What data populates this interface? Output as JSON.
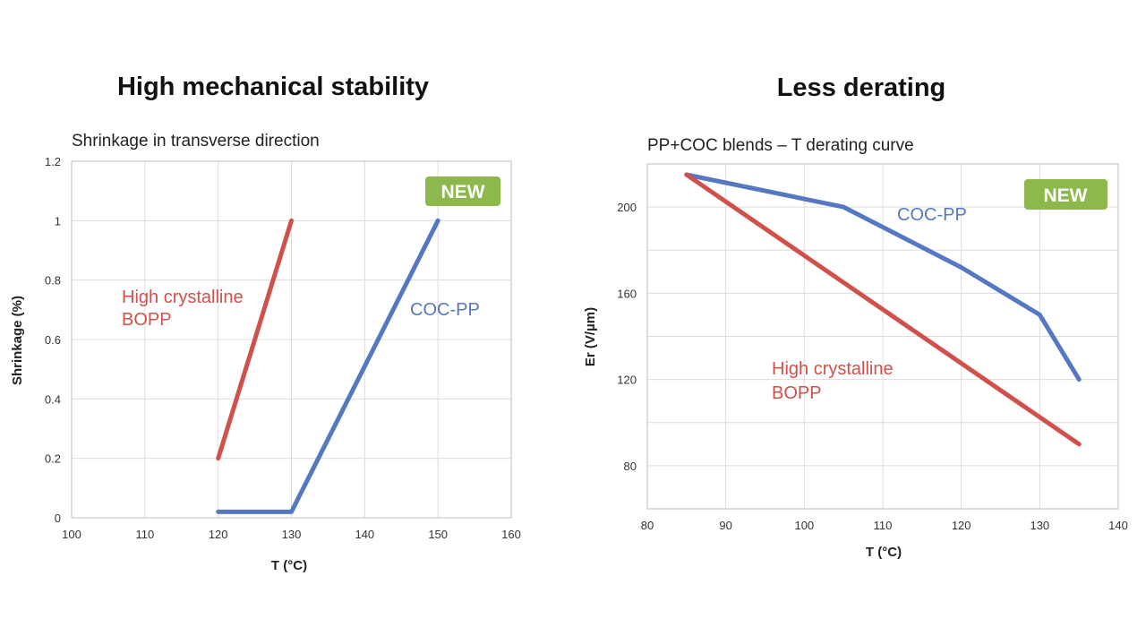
{
  "colors": {
    "red_series": "#d0504b",
    "blue_series": "#5677c1",
    "badge": "#8cb84c"
  },
  "chart_data": [
    {
      "type": "line",
      "heading": "High mechanical stability",
      "title": "Shrinkage in transverse direction",
      "xlabel": "T (°C)",
      "ylabel": "Shrinkage (%)",
      "xlim": [
        100,
        160
      ],
      "ylim": [
        0,
        1.2
      ],
      "x_ticks": [
        100,
        110,
        120,
        130,
        140,
        150,
        160
      ],
      "y_ticks": [
        0,
        0.2,
        0.4,
        0.6,
        0.8,
        1,
        1.2
      ],
      "grid": true,
      "badge": "NEW",
      "series": [
        {
          "name": "High crystalline BOPP",
          "label_lines": [
            "High crystalline",
            "BOPP"
          ],
          "color": "#d0504b",
          "points": [
            [
              120,
              0.2
            ],
            [
              130,
              1.0
            ]
          ]
        },
        {
          "name": "COC-PP",
          "label_lines": [
            "COC-PP"
          ],
          "color": "#5677c1",
          "points": [
            [
              120,
              0.02
            ],
            [
              130,
              0.02
            ],
            [
              150,
              1.0
            ]
          ]
        }
      ]
    },
    {
      "type": "line",
      "heading": "Less derating",
      "title": "PP+COC blends – T derating curve",
      "xlabel": "T (°C)",
      "ylabel": "Er (V/µm)",
      "xlim": [
        80,
        140
      ],
      "ylim": [
        60,
        220
      ],
      "x_ticks": [
        80,
        90,
        100,
        110,
        120,
        130,
        140
      ],
      "y_ticks": [
        80,
        120,
        160,
        200
      ],
      "grid": true,
      "badge": "NEW",
      "series": [
        {
          "name": "COC-PP",
          "label_lines": [
            "COC-PP"
          ],
          "color": "#5677c1",
          "points": [
            [
              85,
              215
            ],
            [
              105,
              200
            ],
            [
              120,
              172
            ],
            [
              130,
              150
            ],
            [
              135,
              120
            ]
          ]
        },
        {
          "name": "High crystalline BOPP",
          "label_lines": [
            "High crystalline",
            "BOPP"
          ],
          "color": "#d0504b",
          "points": [
            [
              85,
              215
            ],
            [
              135,
              90
            ]
          ]
        }
      ]
    }
  ]
}
